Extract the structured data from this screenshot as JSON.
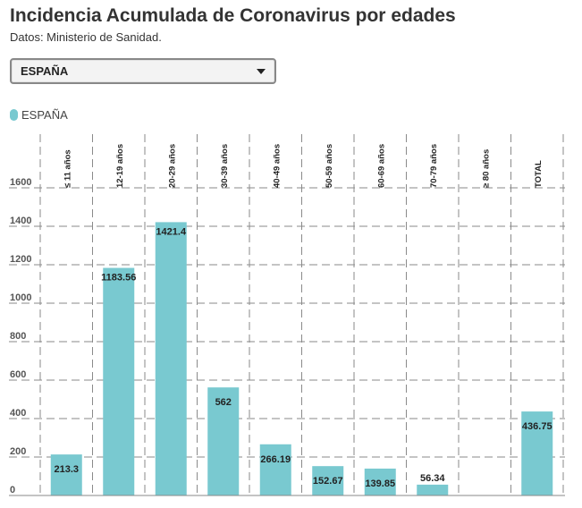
{
  "header": {
    "title": "Incidencia Acumulada de Coronavirus por edades",
    "subtitle": "Datos: Ministerio de Sanidad."
  },
  "region_select": {
    "selected": "ESPAÑA"
  },
  "legend": {
    "items": [
      {
        "label": "ESPAÑA",
        "color": "#79c9d0"
      }
    ]
  },
  "chart_data": {
    "type": "bar",
    "categories": [
      "≤ 11 años",
      "12-19 años",
      "20-29 años",
      "30-39 años",
      "40-49 años",
      "50-59 años",
      "60-69 años",
      "70-79 años",
      "≥ 80 años",
      "TOTAL"
    ],
    "series": [
      {
        "name": "ESPAÑA",
        "color": "#79c9d0",
        "values": [
          213.3,
          1183.56,
          1421.4,
          562,
          266.19,
          152.67,
          139.85,
          56.34,
          null,
          436.75
        ]
      }
    ],
    "data_labels": [
      "213.3",
      "1183.56",
      "1421.4",
      "562",
      "266.19",
      "152.67",
      "139.85",
      "56.34",
      "",
      "436.75"
    ],
    "y_ticks": [
      0,
      200,
      400,
      600,
      800,
      1000,
      1200,
      1400,
      1600
    ],
    "y_tick_labels": [
      "0",
      "200",
      "400",
      "600",
      "800",
      "1000",
      "1200",
      "1400",
      "1600"
    ],
    "ylim": [
      0,
      1600
    ],
    "grid": "dashed",
    "legend_position": "top-left"
  }
}
